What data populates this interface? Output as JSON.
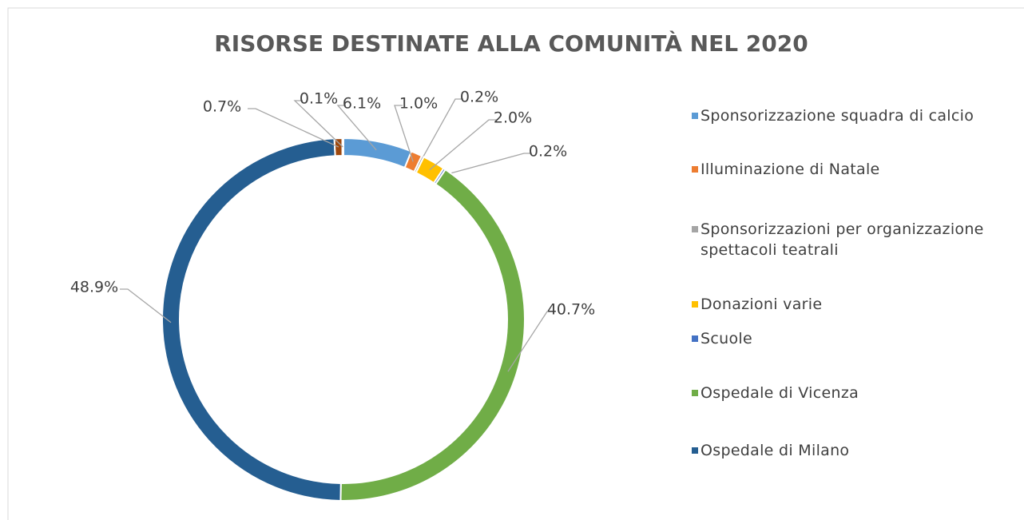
{
  "chart_data": {
    "type": "donut",
    "title": "RISORSE DESTINATE ALLA COMUNITÀ NEL 2020",
    "categories": [
      "Sponsorizzazione squadra di calcio",
      "Illuminazione di Natale",
      "Sponsorizzazioni per organizzazione spettacoli teatrali",
      "Donazioni varie",
      "Scuole",
      "Ospedale di Vicenza",
      "Ospedale di Milano",
      null,
      null
    ],
    "values": [
      6.1,
      1.0,
      0.2,
      2.0,
      0.2,
      40.7,
      48.9,
      0.7,
      0.1
    ],
    "value_labels": [
      "6.1%",
      "1.0%",
      "0.2%",
      "2.0%",
      "0.2%",
      "40.7%",
      "48.9%",
      "0.7%",
      "0.1%"
    ],
    "colors": [
      "#5b9bd5",
      "#ed7d31",
      "#a5a5a5",
      "#ffc000",
      "#4472c4",
      "#70ad47",
      "#255e91",
      "#9e480e",
      "#636363"
    ],
    "legend": "right"
  }
}
